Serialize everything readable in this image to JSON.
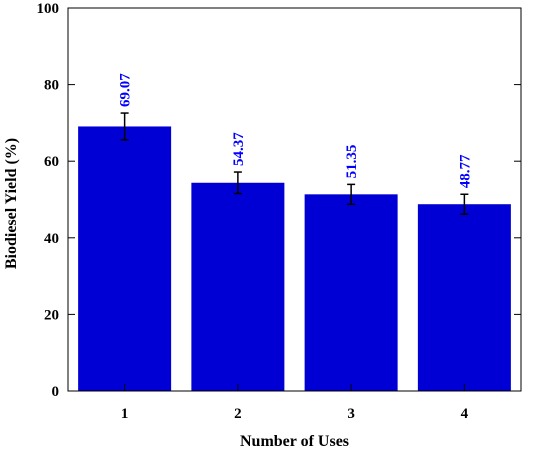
{
  "chart_data": {
    "type": "bar",
    "categories": [
      "1",
      "2",
      "3",
      "4"
    ],
    "values": [
      69.07,
      54.37,
      51.35,
      48.77
    ],
    "value_labels": [
      "69.07",
      "54.37",
      "51.35",
      "48.77"
    ],
    "error": [
      3.5,
      2.8,
      2.6,
      2.6
    ],
    "xlabel": "Number of Uses",
    "ylabel": "Biodiesel Yield (%)",
    "ylim": [
      0,
      100
    ],
    "yticks": [
      0,
      20,
      40,
      60,
      80,
      100
    ],
    "ytick_labels": [
      "0",
      "20",
      "40",
      "60",
      "80",
      "100"
    ],
    "colors": {
      "bar": "#0000d4",
      "label": "#0000ff",
      "axis": "#000000"
    },
    "grid": false,
    "legend": "none"
  }
}
